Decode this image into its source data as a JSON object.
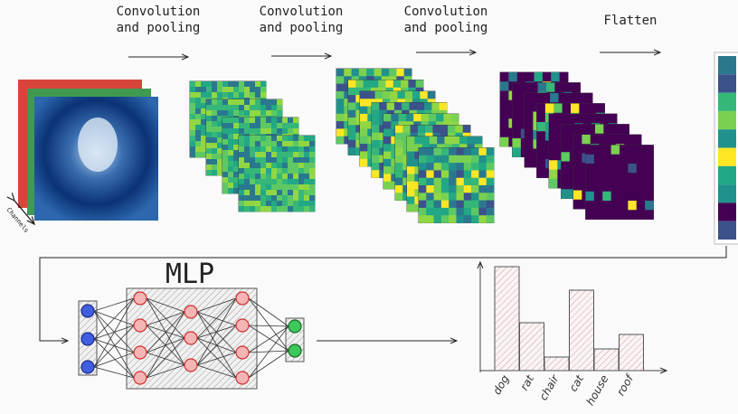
{
  "stages": [
    {
      "label_lines": [
        "Convolution",
        "and pooling"
      ]
    },
    {
      "label_lines": [
        "Convolution",
        "and pooling"
      ]
    },
    {
      "label_lines": [
        "Convolution",
        "and pooling"
      ]
    }
  ],
  "flatten": "Flatten",
  "channels": "Channels",
  "mlp": {
    "title": "MLP"
  },
  "output_chart": {
    "categories": [
      "dog",
      "rat",
      "chair",
      "cat",
      "house",
      "roof"
    ],
    "values": [
      115,
      53,
      15,
      89,
      24,
      40
    ]
  }
}
